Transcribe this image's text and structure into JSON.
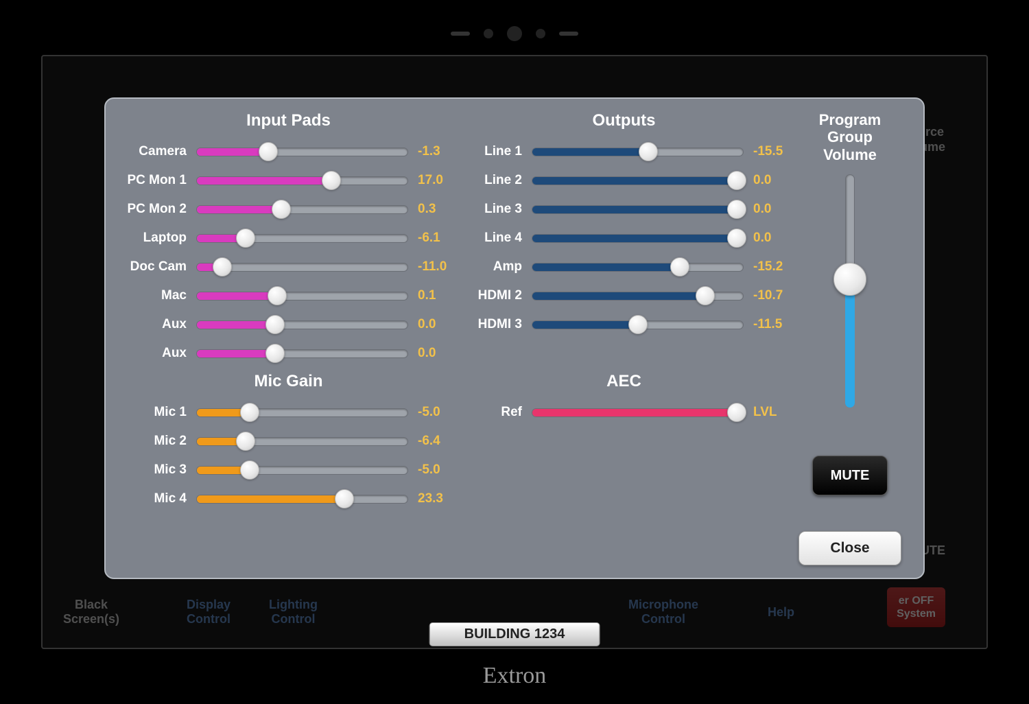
{
  "brand": "Extron",
  "building_label": "BUILDING 1234",
  "background": {
    "black_screens": "Black\nScreen(s)",
    "display_control": "Display\nControl",
    "lighting_control": "Lighting\nControl",
    "microphone_control": "Microphone\nControl",
    "help": "Help",
    "power_off": "er OFF\nSystem",
    "source_volume": "urce\nlume",
    "ute": "UTE"
  },
  "modal": {
    "sections": {
      "input_pads": "Input Pads",
      "mic_gain": "Mic Gain",
      "outputs": "Outputs",
      "aec": "AEC"
    },
    "program_group_volume": {
      "title": "Program\nGroup\nVolume",
      "percent": 55,
      "fill_color": "#2fa8e6"
    },
    "mute_label": "MUTE",
    "close_label": "Close",
    "colors": {
      "input_fill": "#d93bbf",
      "mic_fill": "#f09a1a",
      "output_fill": "#1e4a7a",
      "aec_fill": "#e8356c",
      "value_normal": "#f2c14a",
      "value_alt": "#f2c14a",
      "aec_value": "#f2c14a"
    },
    "input_pads": [
      {
        "label": "Camera",
        "value": "-1.3",
        "percent": 34
      },
      {
        "label": "PC Mon 1",
        "value": "17.0",
        "percent": 64
      },
      {
        "label": "PC Mon 2",
        "value": "0.3",
        "percent": 40
      },
      {
        "label": "Laptop",
        "value": "-6.1",
        "percent": 23
      },
      {
        "label": "Doc Cam",
        "value": "-11.0",
        "percent": 12
      },
      {
        "label": "Mac",
        "value": "0.1",
        "percent": 38
      },
      {
        "label": "Aux",
        "value": "0.0",
        "percent": 37
      },
      {
        "label": "Aux",
        "value": "0.0",
        "percent": 37
      }
    ],
    "mic_gain": [
      {
        "label": "Mic 1",
        "value": "-5.0",
        "percent": 25
      },
      {
        "label": "Mic 2",
        "value": "-6.4",
        "percent": 23
      },
      {
        "label": "Mic 3",
        "value": "-5.0",
        "percent": 25
      },
      {
        "label": "Mic 4",
        "value": "23.3",
        "percent": 70
      }
    ],
    "outputs": [
      {
        "label": "Line 1",
        "value": "-15.5",
        "percent": 55
      },
      {
        "label": "Line 2",
        "value": "0.0",
        "percent": 97
      },
      {
        "label": "Line 3",
        "value": "0.0",
        "percent": 97
      },
      {
        "label": "Line 4",
        "value": "0.0",
        "percent": 97
      },
      {
        "label": "Amp",
        "value": "-15.2",
        "percent": 70
      },
      {
        "label": "HDMI 2",
        "value": "-10.7",
        "percent": 82
      },
      {
        "label": "HDMI 3",
        "value": "-11.5",
        "percent": 50
      }
    ],
    "aec": [
      {
        "label": "Ref",
        "value": "LVL",
        "percent": 97
      }
    ]
  }
}
